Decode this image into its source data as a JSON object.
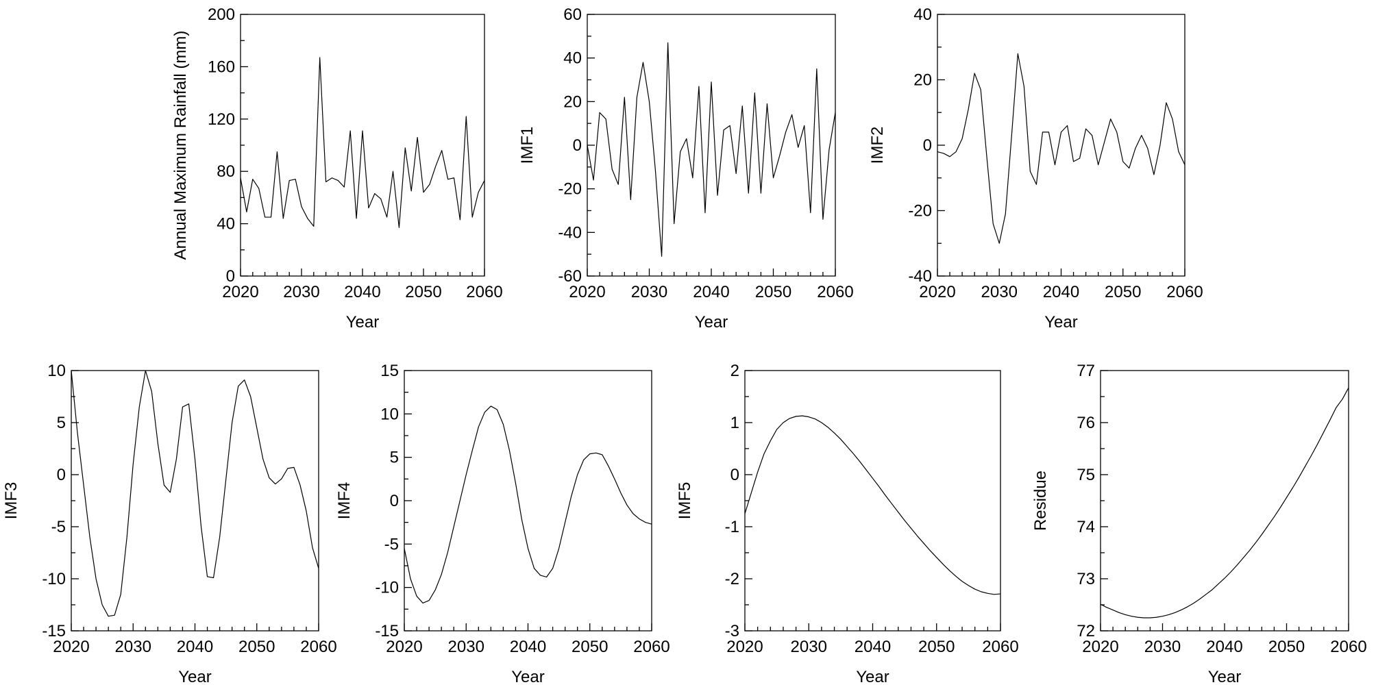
{
  "chart_data": [
    {
      "type": "line",
      "xlabel": "Year",
      "ylabel": "Annual Maximum Rainfall (mm)",
      "xlim": [
        2020,
        2060
      ],
      "ylim": [
        0,
        200
      ],
      "xticks": [
        2020,
        2030,
        2040,
        2050,
        2060
      ],
      "yticks": [
        0,
        40,
        80,
        120,
        160,
        200
      ],
      "y_minor_step": 20,
      "x_minor_step": 2,
      "x": [
        2020,
        2021,
        2022,
        2023,
        2024,
        2025,
        2026,
        2027,
        2028,
        2029,
        2030,
        2031,
        2032,
        2033,
        2034,
        2035,
        2036,
        2037,
        2038,
        2039,
        2040,
        2041,
        2042,
        2043,
        2044,
        2045,
        2046,
        2047,
        2048,
        2049,
        2050,
        2051,
        2052,
        2053,
        2054,
        2055,
        2056,
        2057,
        2058,
        2059,
        2060
      ],
      "series": [
        {
          "values": [
            75,
            49,
            74,
            67,
            45,
            45,
            95,
            44,
            73,
            74,
            53,
            44,
            38,
            167,
            72,
            75,
            73,
            68,
            111,
            44,
            111,
            52,
            63,
            59,
            45,
            80,
            37,
            98,
            65,
            106,
            64,
            70,
            84,
            96,
            74,
            75,
            43,
            122,
            45,
            64,
            73
          ]
        }
      ]
    },
    {
      "type": "line",
      "xlabel": "Year",
      "ylabel": "IMF1",
      "xlim": [
        2020,
        2060
      ],
      "ylim": [
        -60,
        60
      ],
      "xticks": [
        2020,
        2030,
        2040,
        2050,
        2060
      ],
      "yticks": [
        -60,
        -40,
        -20,
        0,
        20,
        40,
        60
      ],
      "y_minor_step": 10,
      "x_minor_step": 2,
      "x": [
        2020,
        2021,
        2022,
        2023,
        2024,
        2025,
        2026,
        2027,
        2028,
        2029,
        2030,
        2031,
        2032,
        2033,
        2034,
        2035,
        2036,
        2037,
        2038,
        2039,
        2040,
        2041,
        2042,
        2043,
        2044,
        2045,
        2046,
        2047,
        2048,
        2049,
        2050,
        2051,
        2052,
        2053,
        2054,
        2055,
        2056,
        2057,
        2058,
        2059,
        2060
      ],
      "series": [
        {
          "values": [
            0,
            -16,
            15,
            12,
            -11,
            -18,
            22,
            -25,
            22,
            38,
            20,
            -12,
            -51,
            47,
            -36,
            -3,
            3,
            -15,
            27,
            -31,
            29,
            -23,
            7,
            9,
            -13,
            18,
            -22,
            24,
            -22,
            19,
            -15,
            -5,
            6,
            14,
            -1,
            9,
            -31,
            35,
            -34,
            -2,
            15
          ]
        }
      ]
    },
    {
      "type": "line",
      "xlabel": "Year",
      "ylabel": "IMF2",
      "xlim": [
        2020,
        2060
      ],
      "ylim": [
        -40,
        40
      ],
      "xticks": [
        2020,
        2030,
        2040,
        2050,
        2060
      ],
      "yticks": [
        -40,
        -20,
        0,
        20,
        40
      ],
      "y_minor_step": 10,
      "x_minor_step": 2,
      "x": [
        2020,
        2021,
        2022,
        2023,
        2024,
        2025,
        2026,
        2027,
        2028,
        2029,
        2030,
        2031,
        2032,
        2033,
        2034,
        2035,
        2036,
        2037,
        2038,
        2039,
        2040,
        2041,
        2042,
        2043,
        2044,
        2045,
        2046,
        2047,
        2048,
        2049,
        2050,
        2051,
        2052,
        2053,
        2054,
        2055,
        2056,
        2057,
        2058,
        2059,
        2060
      ],
      "series": [
        {
          "values": [
            -2,
            -2.5,
            -3.5,
            -2,
            2,
            11,
            22,
            17,
            -4,
            -24,
            -30,
            -21,
            3,
            28,
            18,
            -8,
            -12,
            4,
            4,
            -6,
            4,
            6,
            -5,
            -4,
            5,
            3,
            -6,
            1,
            8,
            4,
            -5,
            -7,
            -1,
            3,
            -1,
            -9,
            0,
            13,
            8,
            -2,
            -6
          ]
        }
      ]
    },
    {
      "type": "line",
      "xlabel": "Year",
      "ylabel": "IMF3",
      "xlim": [
        2020,
        2060
      ],
      "ylim": [
        -15,
        10
      ],
      "xticks": [
        2020,
        2030,
        2040,
        2050,
        2060
      ],
      "yticks": [
        -15,
        -10,
        -5,
        0,
        5,
        10
      ],
      "y_minor_step": 2.5,
      "x_minor_step": 2,
      "x": [
        2020,
        2021,
        2022,
        2023,
        2024,
        2025,
        2026,
        2027,
        2028,
        2029,
        2030,
        2031,
        2032,
        2033,
        2034,
        2035,
        2036,
        2037,
        2038,
        2039,
        2040,
        2041,
        2042,
        2043,
        2044,
        2045,
        2046,
        2047,
        2048,
        2049,
        2050,
        2051,
        2052,
        2053,
        2054,
        2055,
        2056,
        2057,
        2058,
        2059,
        2060
      ],
      "series": [
        {
          "values": [
            10,
            4,
            -1,
            -6,
            -10,
            -12.5,
            -13.6,
            -13.5,
            -11.5,
            -6,
            1,
            6.5,
            10,
            8,
            3,
            -1,
            -1.7,
            1.5,
            6.5,
            6.8,
            1.5,
            -5,
            -9.8,
            -9.9,
            -6,
            -0.5,
            5,
            8.5,
            9.1,
            7.5,
            4.5,
            1.5,
            -0.3,
            -0.9,
            -0.4,
            0.6,
            0.7,
            -1,
            -3.5,
            -7,
            -9
          ]
        }
      ]
    },
    {
      "type": "line",
      "xlabel": "Year",
      "ylabel": "IMF4",
      "xlim": [
        2020,
        2060
      ],
      "ylim": [
        -15,
        15
      ],
      "xticks": [
        2020,
        2030,
        2040,
        2050,
        2060
      ],
      "yticks": [
        -15,
        -10,
        -5,
        0,
        5,
        10,
        15
      ],
      "y_minor_step": 2.5,
      "x_minor_step": 2,
      "x": [
        2020,
        2021,
        2022,
        2023,
        2024,
        2025,
        2026,
        2027,
        2028,
        2029,
        2030,
        2031,
        2032,
        2033,
        2034,
        2035,
        2036,
        2037,
        2038,
        2039,
        2040,
        2041,
        2042,
        2043,
        2044,
        2045,
        2046,
        2047,
        2048,
        2049,
        2050,
        2051,
        2052,
        2053,
        2054,
        2055,
        2056,
        2057,
        2058,
        2059,
        2060
      ],
      "series": [
        {
          "values": [
            -5.5,
            -9,
            -11,
            -11.8,
            -11.5,
            -10.3,
            -8.5,
            -6,
            -3,
            0,
            3,
            5.8,
            8.5,
            10.2,
            10.9,
            10.5,
            8.8,
            5.8,
            2,
            -2.2,
            -5.5,
            -7.8,
            -8.6,
            -8.8,
            -7.8,
            -5.5,
            -2.5,
            0.5,
            3,
            4.7,
            5.4,
            5.5,
            5.3,
            4,
            2.5,
            0.9,
            -0.5,
            -1.5,
            -2.1,
            -2.5,
            -2.7
          ]
        }
      ]
    },
    {
      "type": "line",
      "xlabel": "Year",
      "ylabel": "IMF5",
      "xlim": [
        2020,
        2060
      ],
      "ylim": [
        -3,
        2
      ],
      "xticks": [
        2020,
        2030,
        2040,
        2050,
        2060
      ],
      "yticks": [
        -3,
        -2,
        -1,
        0,
        1,
        2
      ],
      "y_minor_step": 0.5,
      "x_minor_step": 2,
      "x": [
        2020,
        2021,
        2022,
        2023,
        2024,
        2025,
        2026,
        2027,
        2028,
        2029,
        2030,
        2031,
        2032,
        2033,
        2034,
        2035,
        2036,
        2037,
        2038,
        2039,
        2040,
        2041,
        2042,
        2043,
        2044,
        2045,
        2046,
        2047,
        2048,
        2049,
        2050,
        2051,
        2052,
        2053,
        2054,
        2055,
        2056,
        2057,
        2058,
        2059,
        2060
      ],
      "series": [
        {
          "values": [
            -0.75,
            -0.35,
            0.05,
            0.4,
            0.65,
            0.87,
            1.0,
            1.08,
            1.12,
            1.13,
            1.11,
            1.07,
            1.0,
            0.91,
            0.8,
            0.68,
            0.54,
            0.4,
            0.25,
            0.09,
            -0.07,
            -0.23,
            -0.4,
            -0.56,
            -0.72,
            -0.88,
            -1.03,
            -1.18,
            -1.32,
            -1.46,
            -1.59,
            -1.72,
            -1.84,
            -1.95,
            -2.05,
            -2.13,
            -2.2,
            -2.25,
            -2.28,
            -2.3,
            -2.29
          ]
        }
      ]
    },
    {
      "type": "line",
      "xlabel": "Year",
      "ylabel": "Residue",
      "xlim": [
        2020,
        2060
      ],
      "ylim": [
        72,
        77
      ],
      "xticks": [
        2020,
        2030,
        2040,
        2050,
        2060
      ],
      "yticks": [
        72,
        73,
        74,
        75,
        76,
        77
      ],
      "y_minor_step": 0.5,
      "x_minor_step": 2,
      "x": [
        2020,
        2021,
        2022,
        2023,
        2024,
        2025,
        2026,
        2027,
        2028,
        2029,
        2030,
        2031,
        2032,
        2033,
        2034,
        2035,
        2036,
        2037,
        2038,
        2039,
        2040,
        2041,
        2042,
        2043,
        2044,
        2045,
        2046,
        2047,
        2048,
        2049,
        2050,
        2051,
        2052,
        2053,
        2054,
        2055,
        2056,
        2057,
        2058,
        2059,
        2060
      ],
      "series": [
        {
          "values": [
            72.51,
            72.45,
            72.4,
            72.35,
            72.31,
            72.28,
            72.26,
            72.25,
            72.25,
            72.26,
            72.28,
            72.31,
            72.35,
            72.4,
            72.46,
            72.53,
            72.61,
            72.7,
            72.79,
            72.9,
            73.01,
            73.13,
            73.26,
            73.4,
            73.54,
            73.69,
            73.85,
            74.02,
            74.19,
            74.37,
            74.56,
            74.75,
            74.95,
            75.16,
            75.37,
            75.59,
            75.82,
            76.05,
            76.29,
            76.45,
            76.67
          ]
        }
      ]
    }
  ]
}
